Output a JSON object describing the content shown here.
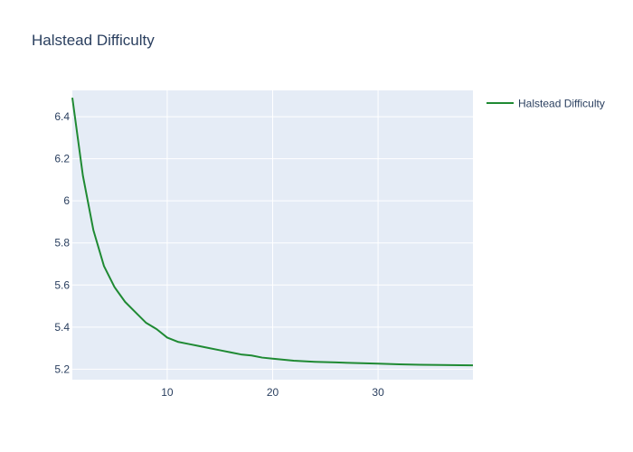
{
  "chart_data": {
    "type": "line",
    "title": "Halstead Difficulty",
    "xlabel": "",
    "ylabel": "",
    "xlim": [
      1,
      39
    ],
    "ylim": [
      5.15,
      6.525
    ],
    "x_ticks": [
      10,
      20,
      30
    ],
    "y_ticks": [
      5.2,
      5.4,
      5.6,
      5.8,
      6,
      6.2,
      6.4
    ],
    "y_tick_labels": [
      "5.2",
      "5.4",
      "5.6",
      "5.8",
      "6",
      "6.2",
      "6.4"
    ],
    "grid": true,
    "legend_position": "top-right",
    "series": [
      {
        "name": "Halstead Difficulty",
        "color": "#1f8a33",
        "x": [
          1,
          2,
          3,
          4,
          5,
          6,
          7,
          8,
          9,
          10,
          11,
          12,
          13,
          14,
          15,
          16,
          17,
          18,
          19,
          20,
          21,
          22,
          24,
          26,
          28,
          30,
          32,
          34,
          36,
          39
        ],
        "y": [
          6.49,
          6.12,
          5.86,
          5.69,
          5.59,
          5.52,
          5.47,
          5.42,
          5.39,
          5.35,
          5.33,
          5.32,
          5.31,
          5.3,
          5.29,
          5.28,
          5.27,
          5.265,
          5.255,
          5.25,
          5.245,
          5.24,
          5.235,
          5.232,
          5.229,
          5.226,
          5.223,
          5.221,
          5.22,
          5.218
        ]
      }
    ]
  }
}
